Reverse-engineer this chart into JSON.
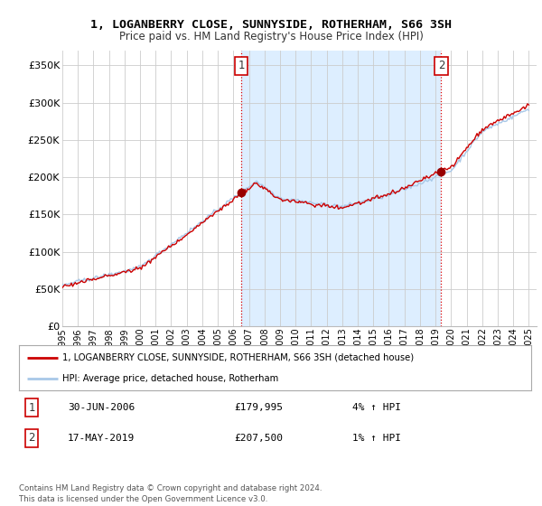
{
  "title": "1, LOGANBERRY CLOSE, SUNNYSIDE, ROTHERHAM, S66 3SH",
  "subtitle": "Price paid vs. HM Land Registry's House Price Index (HPI)",
  "ylabel_ticks": [
    "£0",
    "£50K",
    "£100K",
    "£150K",
    "£200K",
    "£250K",
    "£300K",
    "£350K"
  ],
  "ylim": [
    0,
    370000
  ],
  "xlim_start": 1995.0,
  "xlim_end": 2025.5,
  "sale1_date": 2006.5,
  "sale1_price": 179995,
  "sale2_date": 2019.37,
  "sale2_price": 207500,
  "hpi_color": "#a8c8e8",
  "property_color": "#cc0000",
  "shade_color": "#ddeeff",
  "legend_property": "1, LOGANBERRY CLOSE, SUNNYSIDE, ROTHERHAM, S66 3SH (detached house)",
  "legend_hpi": "HPI: Average price, detached house, Rotherham",
  "copyright": "Contains HM Land Registry data © Crown copyright and database right 2024.\nThis data is licensed under the Open Government Licence v3.0.",
  "background_color": "#ffffff",
  "grid_color": "#cccccc"
}
